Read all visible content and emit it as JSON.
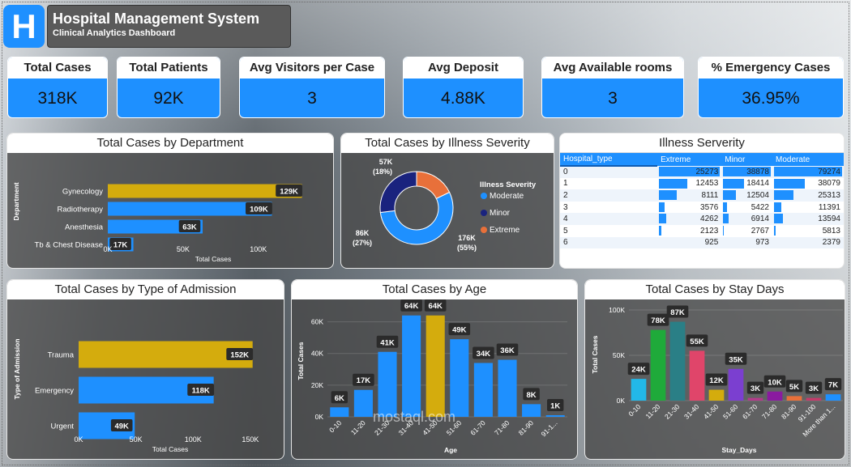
{
  "header": {
    "logo_letter": "H",
    "title": "Hospital Management System",
    "subtitle": "Clinical Analytics Dashboard"
  },
  "kpis": [
    {
      "label": "Total Cases",
      "value": "318K"
    },
    {
      "label": "Total Patients",
      "value": "92K"
    },
    {
      "label": "Avg Visitors per Case",
      "value": "3"
    },
    {
      "label": "Avg Deposit",
      "value": "4.88K"
    },
    {
      "label": "Avg Available rooms",
      "value": "3"
    },
    {
      "label": "% Emergency Cases",
      "value": "36.95%"
    }
  ],
  "colors": {
    "blue": "#1e90ff",
    "gold": "#d4ac0d",
    "navy": "#1a237e",
    "orange": "#e8703a"
  },
  "watermark": "mostaql.com",
  "chart_data": [
    {
      "id": "dept",
      "type": "bar",
      "title": "Total Cases by Department",
      "xlabel": "Total Cases",
      "ylabel": "Department",
      "categories": [
        "Gynecology",
        "Radiotherapy",
        "Anesthesia",
        "Tb & Chest Disease"
      ],
      "values": [
        129,
        109,
        63,
        17
      ],
      "labels": [
        "129K",
        "109K",
        "63K",
        "17K"
      ],
      "ticks": [
        "0K",
        "50K",
        "100K"
      ],
      "xlim": [
        0,
        140
      ]
    },
    {
      "id": "severity",
      "type": "pie",
      "title": "Total Cases by Illness Severity",
      "legend_title": "Illness Severity",
      "categories": [
        "Moderate",
        "Minor",
        "Extreme"
      ],
      "values": [
        176,
        86,
        57
      ],
      "labels": [
        "176K",
        "86K",
        "57K"
      ],
      "pcts": [
        "(55%)",
        "(27%)",
        "(18%)"
      ]
    },
    {
      "id": "admission",
      "type": "bar",
      "title": "Total Cases by Type of Admission",
      "xlabel": "Total Cases",
      "ylabel": "Type of Admission",
      "categories": [
        "Trauma",
        "Emergency",
        "Urgent"
      ],
      "values": [
        152,
        118,
        49
      ],
      "labels": [
        "152K",
        "118K",
        "49K"
      ],
      "ticks": [
        "0K",
        "50K",
        "100K",
        "150K"
      ],
      "xlim": [
        0,
        160
      ]
    },
    {
      "id": "age",
      "type": "bar",
      "title": "Total Cases by Age",
      "xlabel": "Age",
      "ylabel": "Total Cases",
      "categories": [
        "0-10",
        "11-20",
        "21-30",
        "31-40",
        "41-50",
        "51-60",
        "61-70",
        "71-80",
        "81-90",
        "91-1..."
      ],
      "values": [
        6,
        17,
        41,
        64,
        64,
        49,
        34,
        36,
        8,
        1
      ],
      "labels": [
        "6K",
        "17K",
        "41K",
        "64K",
        "64K",
        "49K",
        "34K",
        "36K",
        "8K",
        "1K"
      ],
      "ticks": [
        "0K",
        "20K",
        "40K",
        "60K"
      ],
      "ylim": [
        0,
        70
      ]
    },
    {
      "id": "stay",
      "type": "bar",
      "title": "Total Cases by Stay Days",
      "xlabel": "Stay_Days",
      "ylabel": "Total Cases",
      "categories": [
        "0-10",
        "11-20",
        "21-30",
        "31-40",
        "41-50",
        "51-60",
        "61-70",
        "71-80",
        "81-90",
        "91-100",
        "More than 1..."
      ],
      "values": [
        24,
        78,
        87,
        55,
        12,
        35,
        3,
        10,
        5,
        3,
        7
      ],
      "labels": [
        "24K",
        "78K",
        "87K",
        "55K",
        "12K",
        "35K",
        "3K",
        "10K",
        "5K",
        "3K",
        "7K"
      ],
      "colors": [
        "#22b8e8",
        "#1faa3a",
        "#2a7f86",
        "#e0456a",
        "#d4ac0d",
        "#7b3fd0",
        "#b33a8a",
        "#8a1aa0",
        "#e8703a",
        "#c43a6a",
        "#1e90ff"
      ],
      "ticks": [
        "0K",
        "50K",
        "100K"
      ],
      "ylim": [
        0,
        100
      ]
    }
  ],
  "severity_table": {
    "title": "Illness Serverity",
    "columns": [
      "Hospital_type",
      "Extreme",
      "Minor",
      "Moderate"
    ],
    "rows": [
      [
        "0",
        "25273",
        "38878",
        "79274"
      ],
      [
        "1",
        "12453",
        "18414",
        "38079"
      ],
      [
        "2",
        "8111",
        "12504",
        "25313"
      ],
      [
        "3",
        "3576",
        "5422",
        "11391"
      ],
      [
        "4",
        "4262",
        "6914",
        "13594"
      ],
      [
        "5",
        "2123",
        "2767",
        "5813"
      ],
      [
        "6",
        "925",
        "973",
        "2379"
      ]
    ],
    "max": [
      25273,
      38878,
      79274
    ]
  }
}
